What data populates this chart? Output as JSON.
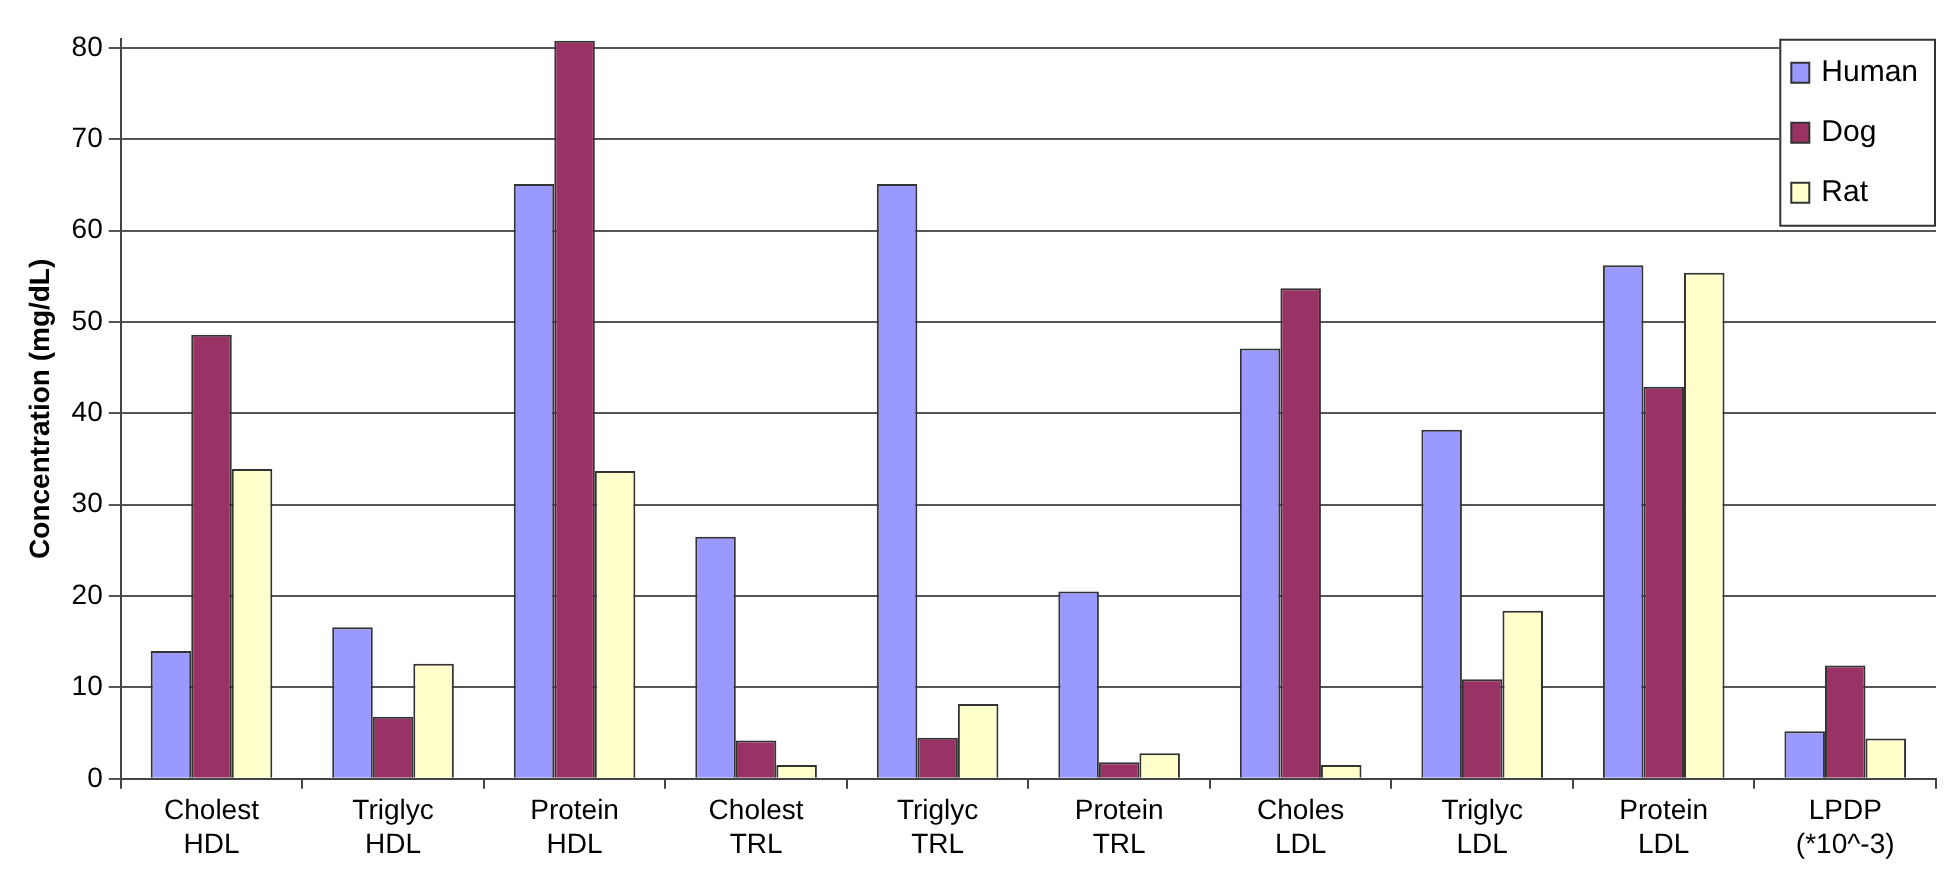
{
  "chart_data": {
    "type": "bar",
    "ylabel": "Concentration (mg/dL)",
    "categories": [
      "Cholest HDL",
      "Triglyc HDL",
      "Protein HDL",
      "Cholest TRL",
      "Triglyc TRL",
      "Protein TRL",
      "Choles LDL",
      "Triglyc LDL",
      "Protein LDL",
      "LPDP (*10^-3)"
    ],
    "series": [
      {
        "name": "Human",
        "color": "#9999ff",
        "values": [
          14.0,
          16.6,
          65.1,
          26.5,
          65.1,
          20.5,
          47.1,
          38.2,
          56.2,
          5.2
        ]
      },
      {
        "name": "Dog",
        "color": "#993366",
        "values": [
          48.6,
          6.8,
          80.8,
          4.2,
          4.5,
          1.8,
          53.7,
          10.9,
          42.9,
          12.4
        ]
      },
      {
        "name": "Rat",
        "color": "#ffffcc",
        "values": [
          33.9,
          12.6,
          33.7,
          1.5,
          8.2,
          2.8,
          1.5,
          18.4,
          55.4,
          4.4
        ]
      }
    ],
    "ylim": [
      0,
      81
    ],
    "yticks": [
      0,
      10,
      20,
      30,
      40,
      50,
      60,
      70,
      80
    ],
    "grid": "y",
    "legend": "top right"
  }
}
